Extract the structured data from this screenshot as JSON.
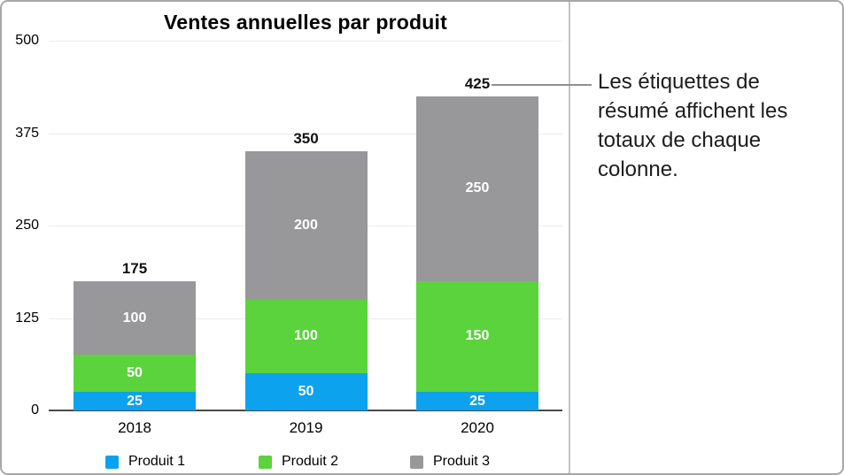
{
  "chart_data": {
    "type": "bar",
    "stacked": true,
    "title": "Ventes annuelles par produit",
    "categories": [
      "2018",
      "2019",
      "2020"
    ],
    "series": [
      {
        "name": "Produit 1",
        "color": "#0ca2ee",
        "values": [
          25,
          50,
          25
        ]
      },
      {
        "name": "Produit 2",
        "color": "#5ad33c",
        "values": [
          50,
          100,
          150
        ]
      },
      {
        "name": "Produit 3",
        "color": "#98989b",
        "values": [
          100,
          200,
          250
        ]
      }
    ],
    "totals": [
      175,
      350,
      425
    ],
    "yticks": [
      0,
      125,
      250,
      375,
      500
    ],
    "ylim": [
      0,
      500
    ],
    "grid": true,
    "legend_position": "bottom",
    "xlabel": "",
    "ylabel": ""
  },
  "annotation": {
    "lines": [
      "Les étiquettes de",
      "résumé affichent les",
      "totaux de chaque",
      "colonne."
    ]
  },
  "colors": {
    "axis_line": "#4a4a4b",
    "gridline": "#ececec",
    "panel_border": "#c3c3c3",
    "frame_border": "#a7a7a7",
    "callout_line": "#8f8f8f",
    "segment_label_text": "#ffffff",
    "text": "#000000"
  }
}
